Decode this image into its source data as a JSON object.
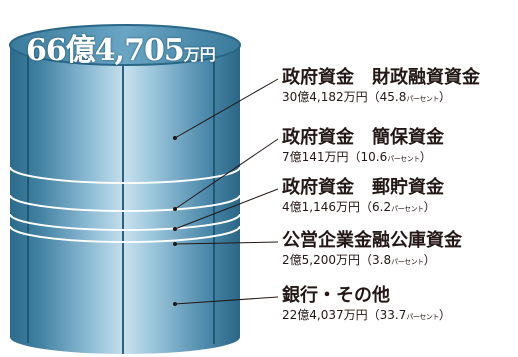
{
  "total": {
    "value": "66億4,705",
    "unit": "万円"
  },
  "segments": [
    {
      "name": "政府資金　財政融資資金",
      "amount": "30億4,182万円（45.8",
      "pct_unit": "パーセント",
      "close": "）"
    },
    {
      "name": "政府資金　簡保資金",
      "amount": "7億141万円（10.6",
      "pct_unit": "パーセント",
      "close": "）"
    },
    {
      "name": "政府資金　郵貯資金",
      "amount": "4億1,146万円（6.2",
      "pct_unit": "パーセント",
      "close": "）"
    },
    {
      "name": "公営企業金融公庫資金",
      "amount": "2億5,200万円（3.8",
      "pct_unit": "パーセント",
      "close": "）"
    },
    {
      "name": "銀行・その他",
      "amount": "22億4,037万円（33.7",
      "pct_unit": "パーセント",
      "close": "）"
    }
  ],
  "colors": {
    "cylinder_dark": "#2b6a8a",
    "cylinder_light": "#b9d6e6",
    "ring": "#ffffff",
    "text": "#231815"
  }
}
